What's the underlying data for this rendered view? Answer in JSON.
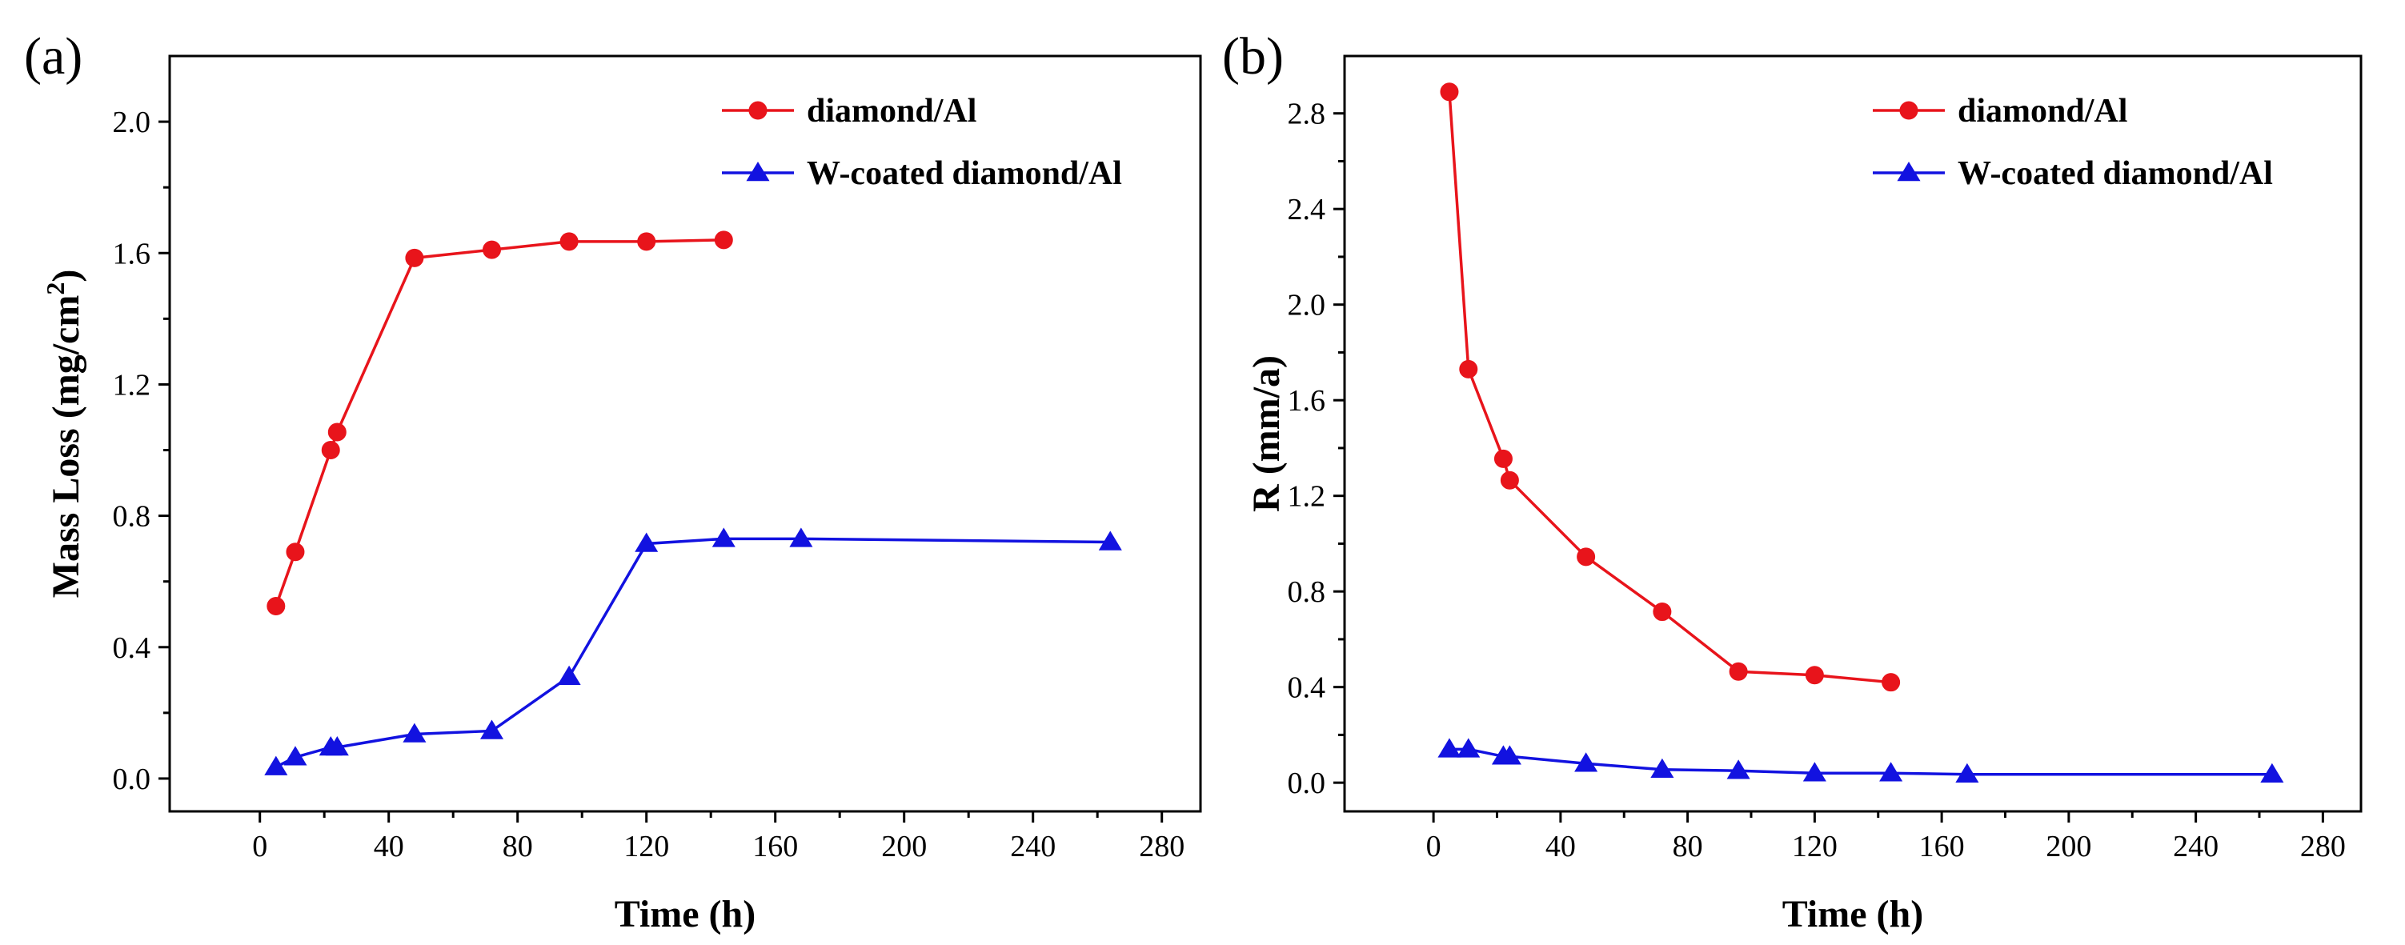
{
  "chart_data": [
    {
      "panel_label": "(a)",
      "type": "line",
      "xlabel": "Time (h)",
      "ylabel": "Mass Loss (mg/cm",
      "ylabel_superscript": "2",
      "ylabel_suffix": ")",
      "xlim": [
        -28,
        292
      ],
      "ylim": [
        -0.1,
        2.2
      ],
      "xticks": [
        0,
        40,
        80,
        120,
        160,
        200,
        240,
        280
      ],
      "xtick_labels": [
        "0",
        "40",
        "80",
        "120",
        "160",
        "200",
        "240",
        "280"
      ],
      "yticks": [
        0.0,
        0.4,
        0.8,
        1.2,
        1.6,
        2.0
      ],
      "ytick_labels": [
        "0.0",
        "0.4",
        "0.8",
        "1.2",
        "1.6",
        "2.0"
      ],
      "legend_position": "top-right",
      "series": [
        {
          "name": "diamond/Al",
          "color": "#e8141b",
          "marker": "circle",
          "x": [
            5,
            11,
            22,
            24,
            48,
            72,
            96,
            120,
            144
          ],
          "y": [
            0.525,
            0.69,
            1.0,
            1.055,
            1.585,
            1.61,
            1.635,
            1.635,
            1.64
          ]
        },
        {
          "name": "W-coated diamond/Al",
          "color": "#1212e0",
          "marker": "triangle",
          "x": [
            5,
            11,
            22,
            24,
            48,
            72,
            96,
            120,
            144,
            168,
            264
          ],
          "y": [
            0.035,
            0.065,
            0.095,
            0.095,
            0.135,
            0.145,
            0.31,
            0.715,
            0.73,
            0.73,
            0.72
          ]
        }
      ]
    },
    {
      "panel_label": "(b)",
      "type": "line",
      "xlabel": "Time (h)",
      "ylabel": "R (mm/a)",
      "ylabel_superscript": "",
      "ylabel_suffix": "",
      "xlim": [
        -28,
        292
      ],
      "ylim": [
        -0.12,
        3.04
      ],
      "xticks": [
        0,
        40,
        80,
        120,
        160,
        200,
        240,
        280
      ],
      "xtick_labels": [
        "0",
        "40",
        "80",
        "120",
        "160",
        "200",
        "240",
        "280"
      ],
      "yticks": [
        0.0,
        0.4,
        0.8,
        1.2,
        1.6,
        2.0,
        2.4,
        2.8
      ],
      "ytick_labels": [
        "0.0",
        "0.4",
        "0.8",
        "1.2",
        "1.6",
        "2.0",
        "2.4",
        "2.8"
      ],
      "legend_position": "top-right",
      "series": [
        {
          "name": "diamond/Al",
          "color": "#e8141b",
          "marker": "circle",
          "x": [
            5,
            11,
            22,
            24,
            48,
            72,
            96,
            120,
            144
          ],
          "y": [
            2.89,
            1.73,
            1.355,
            1.265,
            0.945,
            0.715,
            0.465,
            0.45,
            0.42
          ]
        },
        {
          "name": "W-coated diamond/Al",
          "color": "#1212e0",
          "marker": "triangle",
          "x": [
            5,
            11,
            22,
            24,
            48,
            72,
            96,
            120,
            144,
            168,
            264
          ],
          "y": [
            0.14,
            0.14,
            0.11,
            0.11,
            0.08,
            0.055,
            0.05,
            0.04,
            0.04,
            0.035,
            0.035
          ]
        }
      ]
    }
  ]
}
